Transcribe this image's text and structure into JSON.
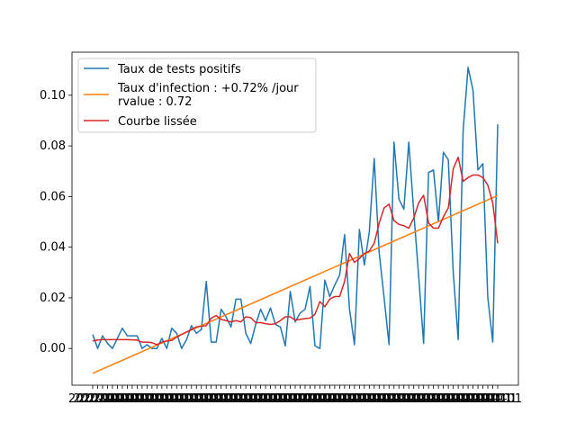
{
  "chart_data": {
    "type": "line",
    "title": "",
    "xlabel": "",
    "ylabel": "",
    "ylim": [
      -0.0145,
      0.117
    ],
    "yticks": [
      "0.00",
      "0.02",
      "0.04",
      "0.06",
      "0.08",
      "0.10"
    ],
    "ytick_values": [
      0.0,
      0.02,
      0.04,
      0.06,
      0.08,
      0.1
    ],
    "x_tick_label": "2020-01",
    "legend_position": "upper-left",
    "legend": {
      "raw": "Taux de tests positifs",
      "trend_line1": "Taux d'infection : +0.72% /jour",
      "trend_line2": "rvalue : 0.72",
      "smooth": "Courbe lissée"
    },
    "colors": {
      "raw": "#1f77b4",
      "trend": "#ff7f0e",
      "smooth": "#d62728"
    },
    "series": [
      {
        "name": "Taux de tests positifs",
        "values": [
          0.0055,
          0.0,
          0.005,
          0.002,
          0.0,
          0.004,
          0.008,
          0.005,
          0.005,
          0.005,
          0.0,
          0.0015,
          0.0,
          0.0,
          0.004,
          0.0,
          0.008,
          0.006,
          0.0,
          0.0035,
          0.009,
          0.006,
          0.0075,
          0.0265,
          0.0025,
          0.0025,
          0.0155,
          0.0125,
          0.0085,
          0.0195,
          0.0195,
          0.006,
          0.002,
          0.0095,
          0.0155,
          0.011,
          0.016,
          0.0095,
          0.0085,
          0.001,
          0.0225,
          0.0105,
          0.014,
          0.0155,
          0.0245,
          0.001,
          0.0,
          0.027,
          0.0205,
          0.025,
          0.029,
          0.045,
          0.0155,
          0.0015,
          0.047,
          0.033,
          0.046,
          0.075,
          0.038,
          0.02,
          0.0015,
          0.0815,
          0.059,
          0.055,
          0.0815,
          0.054,
          0.0285,
          0.002,
          0.0695,
          0.0705,
          0.05,
          0.0775,
          0.0745,
          0.03,
          0.0035,
          0.086,
          0.111,
          0.102,
          0.0705,
          0.073,
          0.02,
          0.0025,
          0.0885
        ]
      },
      {
        "name": "Taux d'infection : +0.72% /jour",
        "values": [
          -0.0098,
          0.0604
        ]
      },
      {
        "name": "Courbe lissée",
        "values": [
          0.003,
          0.0033,
          0.0035,
          0.0035,
          0.0035,
          0.0035,
          0.0035,
          0.0035,
          0.0034,
          0.0033,
          0.0025,
          0.0025,
          0.0023,
          0.0015,
          0.0025,
          0.003,
          0.0032,
          0.0045,
          0.0055,
          0.0065,
          0.0075,
          0.0085,
          0.0088,
          0.009,
          0.012,
          0.013,
          0.0115,
          0.011,
          0.0105,
          0.011,
          0.0105,
          0.0125,
          0.0122,
          0.0102,
          0.0102,
          0.0098,
          0.0095,
          0.0098,
          0.011,
          0.0125,
          0.0125,
          0.0112,
          0.0115,
          0.0118,
          0.012,
          0.0135,
          0.0185,
          0.0165,
          0.0195,
          0.0205,
          0.0205,
          0.0265,
          0.0375,
          0.034,
          0.0355,
          0.0375,
          0.0385,
          0.0415,
          0.0495,
          0.0555,
          0.057,
          0.0505,
          0.049,
          0.0485,
          0.0475,
          0.0515,
          0.0575,
          0.0605,
          0.0495,
          0.0475,
          0.0475,
          0.052,
          0.0555,
          0.071,
          0.0755,
          0.066,
          0.0675,
          0.0685,
          0.0685,
          0.0675,
          0.0645,
          0.0575,
          0.0415
        ]
      }
    ]
  }
}
